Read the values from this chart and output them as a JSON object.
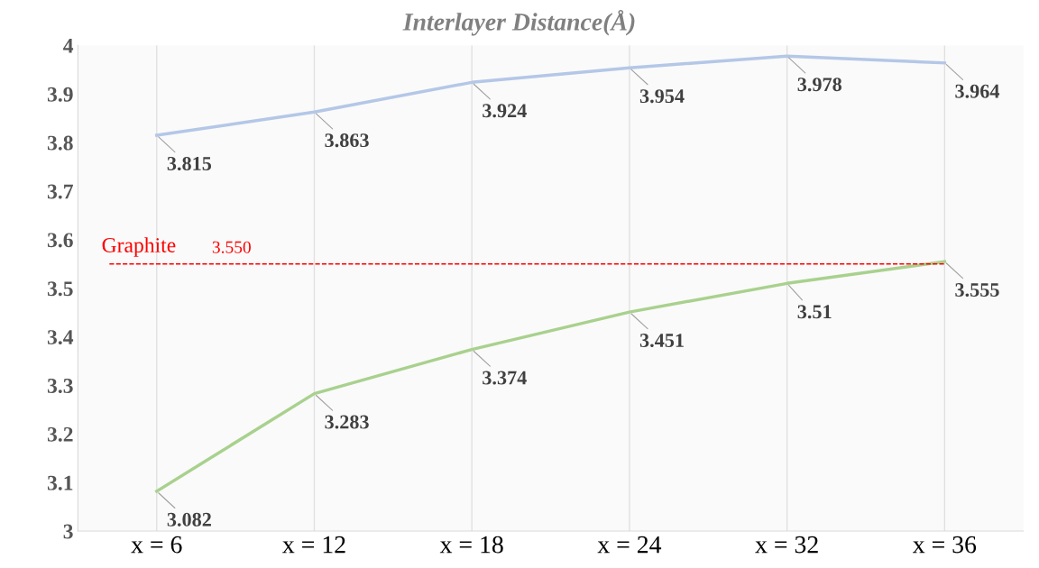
{
  "chart_data": {
    "type": "line",
    "title": "Interlayer Distance(Å)",
    "categories": [
      "x = 6",
      "x = 12",
      "x = 18",
      "x = 24",
      "x = 32",
      "x = 36"
    ],
    "series": [
      {
        "color": "#b4c7e7",
        "values": [
          3.815,
          3.863,
          3.924,
          3.954,
          3.978,
          3.964
        ]
      },
      {
        "color": "#a9d18e",
        "values": [
          3.082,
          3.283,
          3.374,
          3.451,
          3.51,
          3.555
        ]
      }
    ],
    "ylim": [
      3,
      4
    ],
    "yticks": [
      3,
      3.1,
      3.2,
      3.3,
      3.4,
      3.5,
      3.6,
      3.7,
      3.8,
      3.9,
      4
    ],
    "grid": "x",
    "legend": false,
    "marker": "none",
    "line_style": "solid",
    "data_labels": true,
    "ref_lines": [
      {
        "axis": "y",
        "value": 3.55,
        "label": "Graphite",
        "color": "#ff0000",
        "line_style": "dashed"
      }
    ],
    "annotations": [
      "3.550"
    ]
  }
}
